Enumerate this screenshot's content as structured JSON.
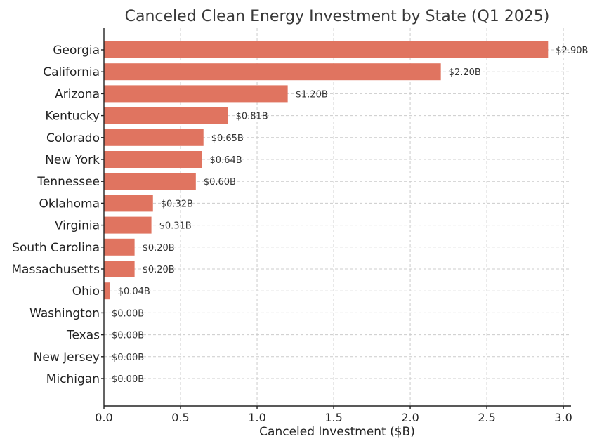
{
  "chart_data": {
    "type": "bar",
    "orientation": "horizontal",
    "title": "Canceled Clean Energy Investment by State (Q1 2025)",
    "xlabel": "Canceled Investment ($B)",
    "ylabel": "",
    "xlim": [
      0,
      3.05
    ],
    "x_ticks": [
      {
        "value": 0,
        "label": "0.0"
      },
      {
        "value": 0.5,
        "label": "0.5"
      },
      {
        "value": 1.0,
        "label": "1.0"
      },
      {
        "value": 1.5,
        "label": "1.5"
      },
      {
        "value": 2.0,
        "label": "2.0"
      },
      {
        "value": 2.5,
        "label": "2.5"
      },
      {
        "value": 3.0,
        "label": "3.0"
      }
    ],
    "grid": true,
    "bar_color": "#e07460",
    "categories": [
      "Georgia",
      "California",
      "Arizona",
      "Kentucky",
      "Colorado",
      "New York",
      "Tennessee",
      "Oklahoma",
      "Virginia",
      "South Carolina",
      "Massachusetts",
      "Ohio",
      "Washington",
      "Texas",
      "New Jersey",
      "Michigan"
    ],
    "values": [
      2.9,
      2.2,
      1.2,
      0.81,
      0.65,
      0.64,
      0.6,
      0.32,
      0.31,
      0.2,
      0.2,
      0.04,
      0.0,
      0.0,
      0.0,
      0.0
    ],
    "data_labels": [
      "$2.90B",
      "$2.20B",
      "$1.20B",
      "$0.81B",
      "$0.65B",
      "$0.64B",
      "$0.60B",
      "$0.32B",
      "$0.31B",
      "$0.20B",
      "$0.20B",
      "$0.04B",
      "$0.00B",
      "$0.00B",
      "$0.00B",
      "$0.00B"
    ]
  }
}
